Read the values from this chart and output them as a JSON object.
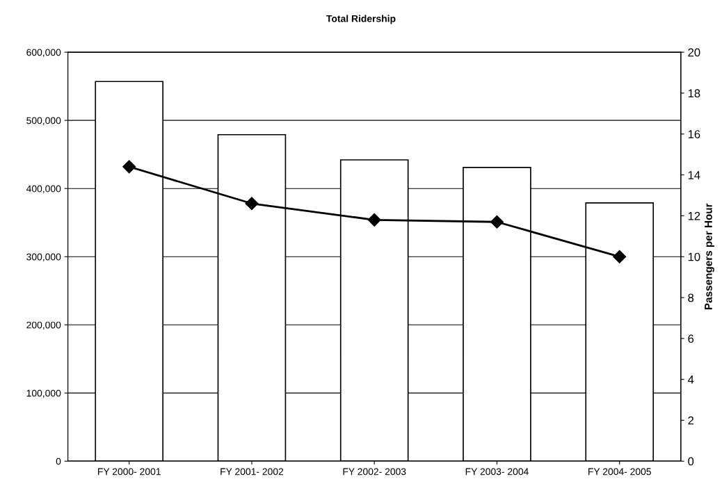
{
  "chart_data": {
    "type": "bar",
    "title": "Total Ridership",
    "y2label": "Passengers per Hour",
    "categories": [
      "FY 2000- 2001",
      "FY 2001- 2002",
      "FY 2002- 2003",
      "FY 2003- 2004",
      "FY 2004- 2005"
    ],
    "series": [
      {
        "color": "#ffffff",
        "values": [
          557000,
          479000,
          442000,
          431000,
          379000
        ]
      },
      {
        "type": "line",
        "axis": "y2",
        "color": "#000000",
        "marker": "diamond",
        "values": [
          14.4,
          12.6,
          11.8,
          11.7,
          10.0
        ]
      }
    ],
    "ylim": [
      0,
      600000
    ],
    "yticks": [
      {
        "value": 0,
        "label": "0"
      },
      {
        "value": 100000,
        "label": "100,000"
      },
      {
        "value": 200000,
        "label": "200,000"
      },
      {
        "value": 300000,
        "label": "300,000"
      },
      {
        "value": 400000,
        "label": "400,000"
      },
      {
        "value": 500000,
        "label": "500,000"
      },
      {
        "value": 600000,
        "label": "600,000"
      }
    ],
    "y2lim": [
      0,
      20
    ],
    "y2ticks": [
      0,
      2,
      4,
      6,
      8,
      10,
      12,
      14,
      16,
      18,
      20
    ],
    "grid": "y"
  }
}
